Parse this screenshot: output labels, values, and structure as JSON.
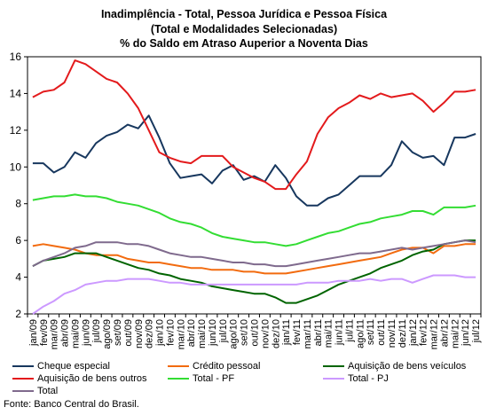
{
  "chart_data": {
    "type": "line",
    "title": [
      "Inadimplência -  Total, Pessoa Jurídica e Pessoa Física",
      "(Total e Modalidades Selecionadas)",
      "% do Saldo em Atraso Auperior a Noventa Dias"
    ],
    "x": [
      "jan/09",
      "fev/09",
      "mar/09",
      "abr/09",
      "mai/09",
      "jun/09",
      "jul/09",
      "ago/09",
      "set/09",
      "out/09",
      "nov/09",
      "dez/09",
      "jan/10",
      "fev/10",
      "mar/10",
      "abr/10",
      "mai/10",
      "jun/10",
      "jul/10",
      "ago/10",
      "set/10",
      "out/10",
      "nov/10",
      "dez/10",
      "jan/11",
      "fev/11",
      "mar/11",
      "abr/11",
      "mai/11",
      "jun/11",
      "jul/11",
      "ago/11",
      "set/11",
      "out/11",
      "nov/11",
      "dez/11",
      "jan/12",
      "fev/12",
      "mar/12",
      "abr/12",
      "mai/12",
      "jun/12",
      "jul/12"
    ],
    "xlabels_shown": [
      "jan/09",
      "fev/09",
      "mar/09",
      "abr/09",
      "mai/09",
      "jun/09",
      "jul/09",
      "ago/09",
      "set/09",
      "out/09",
      "nov/09",
      "dez/09",
      "jan/10",
      "fev/10",
      "mar/10",
      "abr/10",
      "mai/10",
      "jun/10",
      "jul/10",
      "ago/10",
      "set/10",
      "out/10",
      "nov/10",
      "dez/10",
      "jan/11",
      "fev/11",
      "mar/11",
      "abr/11",
      "mai/11",
      "jun/11",
      "jul/11",
      "ago/11",
      "set/11",
      "out/11",
      "nov/11",
      "dez/11",
      "jan/12",
      "fev/12",
      "mar/12",
      "abr/12",
      "mai/12",
      "jun/12",
      "jul/12"
    ],
    "ylim": [
      2,
      16
    ],
    "yticks": [
      2,
      4,
      6,
      8,
      10,
      12,
      14,
      16
    ],
    "grid": false,
    "legend_position": "bottom",
    "series": [
      {
        "name": "Cheque especial",
        "color": "#17375E",
        "values": [
          10.2,
          10.2,
          9.7,
          10.0,
          10.8,
          10.5,
          11.3,
          11.7,
          11.9,
          12.3,
          12.1,
          12.8,
          11.6,
          10.2,
          9.4,
          9.5,
          9.6,
          9.1,
          9.8,
          10.1,
          9.3,
          9.5,
          9.2,
          10.1,
          9.4,
          8.4,
          7.9,
          7.9,
          8.3,
          8.5,
          9.0,
          9.5,
          9.5,
          9.5,
          10.1,
          11.4,
          10.8,
          10.5,
          10.6,
          10.1,
          11.6,
          11.6,
          11.8
        ]
      },
      {
        "name": "Crédito pessoal",
        "color": "#F26B0F",
        "values": [
          5.7,
          5.8,
          5.7,
          5.6,
          5.5,
          5.3,
          5.2,
          5.2,
          5.2,
          5.0,
          4.9,
          4.8,
          4.8,
          4.7,
          4.6,
          4.5,
          4.5,
          4.4,
          4.4,
          4.4,
          4.3,
          4.3,
          4.2,
          4.2,
          4.2,
          4.3,
          4.4,
          4.5,
          4.6,
          4.7,
          4.8,
          4.9,
          5.0,
          5.1,
          5.3,
          5.5,
          5.6,
          5.6,
          5.3,
          5.7,
          5.7,
          5.8,
          5.8
        ]
      },
      {
        "name": "Aquisição de bens veículos",
        "color": "#006400",
        "values": [
          4.6,
          4.9,
          5.0,
          5.1,
          5.3,
          5.3,
          5.3,
          5.1,
          4.9,
          4.7,
          4.5,
          4.4,
          4.2,
          4.1,
          3.9,
          3.8,
          3.7,
          3.5,
          3.4,
          3.3,
          3.2,
          3.1,
          3.1,
          2.9,
          2.6,
          2.6,
          2.8,
          3.0,
          3.3,
          3.6,
          3.8,
          4.0,
          4.2,
          4.5,
          4.7,
          4.9,
          5.2,
          5.4,
          5.5,
          5.8,
          5.9,
          6.0,
          6.0
        ]
      },
      {
        "name": "Aquisição de bens outros",
        "color": "#E31A1C",
        "values": [
          13.8,
          14.1,
          14.2,
          14.6,
          15.8,
          15.6,
          15.2,
          14.8,
          14.6,
          14.0,
          13.2,
          12.0,
          10.8,
          10.5,
          10.3,
          10.2,
          10.6,
          10.6,
          10.6,
          10.0,
          9.7,
          9.4,
          9.2,
          8.8,
          8.8,
          9.6,
          10.3,
          11.8,
          12.7,
          13.2,
          13.5,
          13.9,
          13.7,
          14.0,
          13.8,
          13.9,
          14.0,
          13.6,
          13.0,
          13.5,
          14.1,
          14.1,
          14.2
        ]
      },
      {
        "name": "Total - PF",
        "color": "#33DD33",
        "values": [
          8.2,
          8.3,
          8.4,
          8.4,
          8.5,
          8.4,
          8.4,
          8.3,
          8.1,
          8.0,
          7.9,
          7.7,
          7.5,
          7.2,
          7.0,
          6.9,
          6.7,
          6.4,
          6.2,
          6.1,
          6.0,
          5.9,
          5.9,
          5.8,
          5.7,
          5.8,
          6.0,
          6.2,
          6.4,
          6.5,
          6.7,
          6.9,
          7.0,
          7.2,
          7.3,
          7.4,
          7.6,
          7.6,
          7.4,
          7.8,
          7.8,
          7.8,
          7.9
        ]
      },
      {
        "name": "Total - PJ",
        "color": "#CC99FF",
        "values": [
          2.0,
          2.4,
          2.7,
          3.1,
          3.3,
          3.6,
          3.7,
          3.8,
          3.8,
          3.9,
          3.9,
          3.9,
          3.8,
          3.7,
          3.7,
          3.6,
          3.6,
          3.6,
          3.6,
          3.6,
          3.6,
          3.6,
          3.6,
          3.6,
          3.6,
          3.6,
          3.7,
          3.7,
          3.7,
          3.8,
          3.8,
          3.8,
          3.9,
          3.8,
          3.9,
          3.9,
          3.7,
          3.9,
          4.1,
          4.1,
          4.1,
          4.0,
          4.0
        ]
      },
      {
        "name": "Total",
        "color": "#7F6A8D",
        "values": [
          4.6,
          4.9,
          5.1,
          5.3,
          5.6,
          5.7,
          5.9,
          5.9,
          5.9,
          5.8,
          5.8,
          5.7,
          5.5,
          5.3,
          5.2,
          5.1,
          5.1,
          5.0,
          4.9,
          4.8,
          4.8,
          4.7,
          4.7,
          4.6,
          4.6,
          4.7,
          4.8,
          4.9,
          5.0,
          5.1,
          5.2,
          5.3,
          5.3,
          5.4,
          5.5,
          5.6,
          5.5,
          5.6,
          5.7,
          5.8,
          5.9,
          6.0,
          5.9
        ]
      }
    ]
  },
  "source": "Fonte: Banco Central do Brasil."
}
